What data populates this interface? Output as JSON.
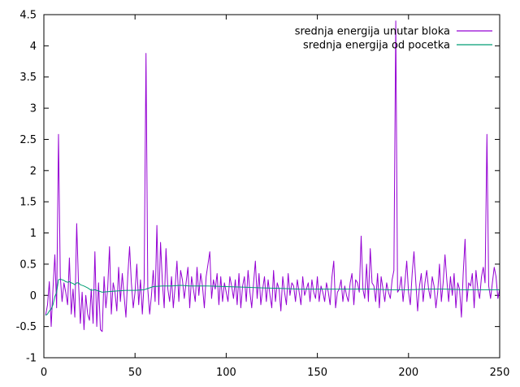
{
  "chart_data": {
    "type": "line",
    "title": "",
    "xlabel": "",
    "ylabel": "",
    "xlim": [
      0,
      250
    ],
    "ylim": [
      -1,
      4.5
    ],
    "xticks": [
      0,
      50,
      100,
      150,
      200,
      250
    ],
    "yticks": [
      -1,
      -0.5,
      0,
      0.5,
      1,
      1.5,
      2,
      2.5,
      3,
      3.5,
      4,
      4.5
    ],
    "legend_position": "top-right",
    "grid": false,
    "series": [
      {
        "name": "srednja energija unutar bloka",
        "color": "#9400d3",
        "x": [
          1,
          2,
          3,
          4,
          5,
          6,
          7,
          8,
          9,
          10,
          11,
          12,
          13,
          14,
          15,
          16,
          17,
          18,
          19,
          20,
          21,
          22,
          23,
          24,
          25,
          26,
          27,
          28,
          29,
          30,
          31,
          32,
          33,
          34,
          35,
          36,
          37,
          38,
          39,
          40,
          41,
          42,
          43,
          44,
          45,
          46,
          47,
          48,
          49,
          50,
          51,
          52,
          53,
          54,
          55,
          56,
          57,
          58,
          59,
          60,
          61,
          62,
          63,
          64,
          65,
          66,
          67,
          68,
          69,
          70,
          71,
          72,
          73,
          74,
          75,
          76,
          77,
          78,
          79,
          80,
          81,
          82,
          83,
          84,
          85,
          86,
          87,
          88,
          89,
          90,
          91,
          92,
          93,
          94,
          95,
          96,
          97,
          98,
          99,
          100,
          101,
          102,
          103,
          104,
          105,
          106,
          107,
          108,
          109,
          110,
          111,
          112,
          113,
          114,
          115,
          116,
          117,
          118,
          119,
          120,
          121,
          122,
          123,
          124,
          125,
          126,
          127,
          128,
          129,
          130,
          131,
          132,
          133,
          134,
          135,
          136,
          137,
          138,
          139,
          140,
          141,
          142,
          143,
          144,
          145,
          146,
          147,
          148,
          149,
          150,
          151,
          152,
          153,
          154,
          155,
          156,
          157,
          158,
          159,
          160,
          161,
          162,
          163,
          164,
          165,
          166,
          167,
          168,
          169,
          170,
          171,
          172,
          173,
          174,
          175,
          176,
          177,
          178,
          179,
          180,
          181,
          182,
          183,
          184,
          185,
          186,
          187,
          188,
          189,
          190,
          191,
          192,
          193,
          194,
          195,
          196,
          197,
          198,
          199,
          200,
          201,
          202,
          203,
          204,
          205,
          206,
          207,
          208,
          209,
          210,
          211,
          212,
          213,
          214,
          215,
          216,
          217,
          218,
          219,
          220,
          221,
          222,
          223,
          224,
          225,
          226,
          227,
          228,
          229,
          230,
          231,
          232,
          233,
          234,
          235,
          236,
          237,
          238,
          239,
          240,
          241,
          242,
          243,
          244,
          245,
          246,
          247,
          248,
          249,
          250
        ],
        "values": [
          -0.32,
          -0.15,
          0.22,
          -0.5,
          0.1,
          0.65,
          -0.2,
          2.58,
          0.3,
          -0.1,
          0.2,
          0.05,
          -0.15,
          0.6,
          -0.3,
          0.1,
          -0.35,
          1.15,
          0.2,
          -0.45,
          0.05,
          -0.55,
          0.0,
          -0.3,
          -0.4,
          0.1,
          -0.45,
          0.7,
          -0.5,
          0.2,
          -0.55,
          -0.58,
          0.3,
          -0.2,
          0.1,
          0.78,
          -0.3,
          0.2,
          0.05,
          -0.25,
          0.45,
          -0.1,
          0.35,
          0.0,
          -0.35,
          0.3,
          0.78,
          0.2,
          -0.2,
          0.05,
          0.5,
          -0.15,
          0.25,
          -0.3,
          0.2,
          3.88,
          0.1,
          -0.3,
          0.0,
          0.4,
          -0.1,
          1.12,
          -0.15,
          0.85,
          0.2,
          -0.2,
          0.75,
          0.1,
          -0.1,
          0.3,
          -0.2,
          0.15,
          0.55,
          -0.1,
          0.4,
          0.25,
          -0.05,
          0.2,
          0.45,
          -0.2,
          0.3,
          0.1,
          -0.1,
          0.45,
          0.0,
          0.35,
          0.15,
          -0.2,
          0.3,
          0.5,
          0.7,
          -0.05,
          0.25,
          0.1,
          0.35,
          -0.15,
          0.3,
          -0.1,
          0.2,
          0.05,
          -0.1,
          0.3,
          0.15,
          -0.05,
          0.25,
          -0.15,
          0.35,
          -0.2,
          0.15,
          0.3,
          -0.1,
          0.4,
          0.05,
          -0.2,
          0.2,
          0.55,
          -0.05,
          0.35,
          -0.15,
          0.1,
          0.3,
          -0.1,
          0.25,
          0.0,
          -0.2,
          0.4,
          -0.1,
          0.2,
          0.1,
          -0.25,
          0.3,
          0.05,
          -0.15,
          0.35,
          0.0,
          0.2,
          0.15,
          -0.1,
          0.25,
          0.05,
          -0.15,
          0.3,
          0.0,
          0.1,
          0.2,
          -0.1,
          0.25,
          0.05,
          -0.05,
          0.3,
          -0.1,
          0.15,
          0.05,
          -0.1,
          0.2,
          0.05,
          -0.15,
          0.3,
          0.55,
          -0.2,
          0.05,
          0.1,
          0.25,
          -0.1,
          0.15,
          0.0,
          -0.1,
          0.2,
          0.35,
          -0.15,
          0.25,
          0.2,
          0.05,
          0.95,
          0.1,
          -0.05,
          0.5,
          -0.1,
          0.75,
          0.2,
          0.15,
          -0.1,
          0.35,
          -0.2,
          0.3,
          0.1,
          -0.1,
          0.2,
          0.05,
          -0.05,
          0.25,
          0.4,
          4.4,
          0.05,
          0.1,
          0.3,
          -0.1,
          0.2,
          0.55,
          0.05,
          -0.15,
          0.35,
          0.7,
          0.2,
          -0.25,
          0.15,
          0.35,
          -0.1,
          0.2,
          0.4,
          0.1,
          -0.05,
          0.3,
          0.15,
          -0.2,
          0.05,
          0.5,
          -0.1,
          0.2,
          0.65,
          0.25,
          -0.1,
          0.3,
          0.0,
          0.35,
          -0.2,
          0.2,
          0.1,
          -0.35,
          0.35,
          0.9,
          -0.1,
          0.2,
          0.15,
          0.35,
          -0.2,
          0.4,
          0.1,
          -0.05,
          0.3,
          0.45,
          0.2,
          2.58,
          0.15,
          -0.05,
          0.2,
          0.45,
          0.3,
          -0.05,
          0.1
        ]
      },
      {
        "name": "srednja energija od pocetka",
        "color": "#009e73",
        "x": [
          1,
          2,
          3,
          4,
          5,
          6,
          7,
          8,
          9,
          10,
          11,
          12,
          13,
          14,
          15,
          16,
          17,
          18,
          19,
          20,
          22,
          24,
          26,
          28,
          30,
          32,
          35,
          40,
          45,
          50,
          55,
          60,
          65,
          70,
          75,
          80,
          90,
          100,
          110,
          120,
          130,
          140,
          150,
          160,
          170,
          180,
          190,
          200,
          210,
          220,
          230,
          240,
          250
        ],
        "values": [
          -0.32,
          -0.3,
          -0.25,
          -0.22,
          -0.15,
          -0.02,
          0.05,
          0.25,
          0.26,
          0.25,
          0.24,
          0.22,
          0.21,
          0.22,
          0.2,
          0.19,
          0.17,
          0.2,
          0.2,
          0.17,
          0.15,
          0.12,
          0.08,
          0.09,
          0.07,
          0.05,
          0.06,
          0.07,
          0.08,
          0.08,
          0.09,
          0.14,
          0.15,
          0.15,
          0.16,
          0.15,
          0.15,
          0.14,
          0.13,
          0.12,
          0.11,
          0.1,
          0.1,
          0.1,
          0.1,
          0.1,
          0.09,
          0.09,
          0.1,
          0.1,
          0.09,
          0.09,
          0.09
        ]
      }
    ]
  }
}
